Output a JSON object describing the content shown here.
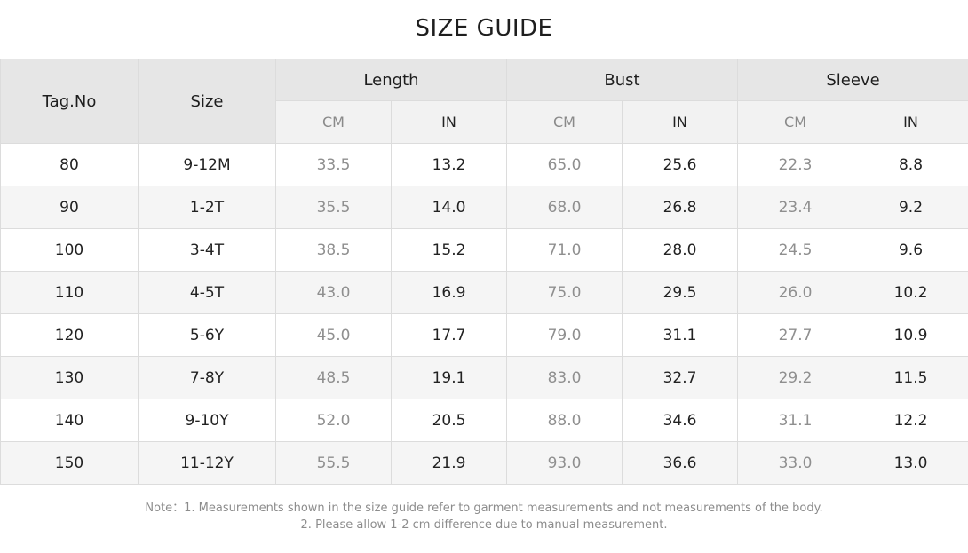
{
  "title": "SIZE GUIDE",
  "headers": {
    "tag": "Tag.No",
    "size": "Size",
    "groups": [
      "Length",
      "Bust",
      "Sleeve"
    ],
    "cm": "CM",
    "in": "IN"
  },
  "rows": [
    {
      "tag": "80",
      "size": "9-12M",
      "length_cm": "33.5",
      "length_in": "13.2",
      "bust_cm": "65.0",
      "bust_in": "25.6",
      "sleeve_cm": "22.3",
      "sleeve_in": "8.8"
    },
    {
      "tag": "90",
      "size": "1-2T",
      "length_cm": "35.5",
      "length_in": "14.0",
      "bust_cm": "68.0",
      "bust_in": "26.8",
      "sleeve_cm": "23.4",
      "sleeve_in": "9.2"
    },
    {
      "tag": "100",
      "size": "3-4T",
      "length_cm": "38.5",
      "length_in": "15.2",
      "bust_cm": "71.0",
      "bust_in": "28.0",
      "sleeve_cm": "24.5",
      "sleeve_in": "9.6"
    },
    {
      "tag": "110",
      "size": "4-5T",
      "length_cm": "43.0",
      "length_in": "16.9",
      "bust_cm": "75.0",
      "bust_in": "29.5",
      "sleeve_cm": "26.0",
      "sleeve_in": "10.2"
    },
    {
      "tag": "120",
      "size": "5-6Y",
      "length_cm": "45.0",
      "length_in": "17.7",
      "bust_cm": "79.0",
      "bust_in": "31.1",
      "sleeve_cm": "27.7",
      "sleeve_in": "10.9"
    },
    {
      "tag": "130",
      "size": "7-8Y",
      "length_cm": "48.5",
      "length_in": "19.1",
      "bust_cm": "83.0",
      "bust_in": "32.7",
      "sleeve_cm": "29.2",
      "sleeve_in": "11.5"
    },
    {
      "tag": "140",
      "size": "9-10Y",
      "length_cm": "52.0",
      "length_in": "20.5",
      "bust_cm": "88.0",
      "bust_in": "34.6",
      "sleeve_cm": "31.1",
      "sleeve_in": "12.2"
    },
    {
      "tag": "150",
      "size": "11-12Y",
      "length_cm": "55.5",
      "length_in": "21.9",
      "bust_cm": "93.0",
      "bust_in": "36.6",
      "sleeve_cm": "33.0",
      "sleeve_in": "13.0"
    }
  ],
  "note": {
    "line1": "Note：1. Measurements shown in the size guide refer to garment measurements and not measurements of the body.",
    "line2": "2. Please allow 1-2 cm difference due to manual measurement."
  }
}
